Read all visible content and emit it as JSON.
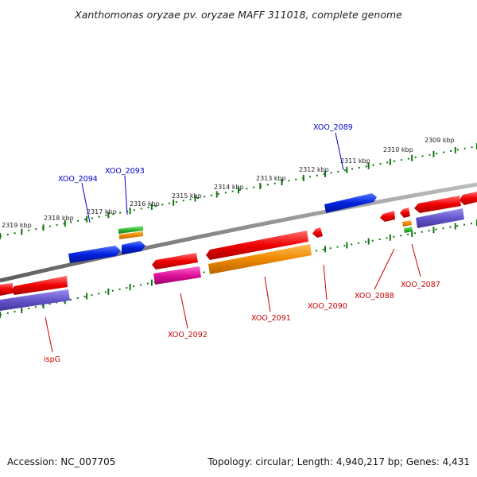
{
  "title": "Xanthomonas oryzae pv. oryzae MAFF 311018, complete genome",
  "footer": {
    "accession": "Accession: NC_007705",
    "topology": "Topology: circular; Length: 4,940,217 bp; Genes: 4,431"
  },
  "ticks": [
    "2309 kbp",
    "2310 kbp",
    "2311 kbp",
    "2312 kbp",
    "2313 kbp",
    "2314 kbp",
    "2315 kbp",
    "2316 kbp",
    "2317 kbp",
    "2318 kbp",
    "2319 kbp"
  ],
  "gene_labels": {
    "xoo2089": "XOO_2089",
    "xoo2093": "XOO_2093",
    "xoo2094": "XOO_2094",
    "xoo2087": "XOO_2087",
    "xoo2088": "XOO_2088",
    "xoo2090": "XOO_2090",
    "xoo2091": "XOO_2091",
    "xoo2092": "XOO_2092",
    "ispg": "ispG"
  },
  "colors": {
    "forward_label": "#0000cc",
    "reverse_label": "#cc0000",
    "forward_gene": "#0022dd",
    "reverse_gene": "#ee0000",
    "cog_orange": "#ee8800",
    "cog_magenta": "#dd1199",
    "cog_slate": "#6655cc",
    "cog_green": "#33bb33",
    "backbone": "#888888",
    "tick_green": "#117711"
  }
}
